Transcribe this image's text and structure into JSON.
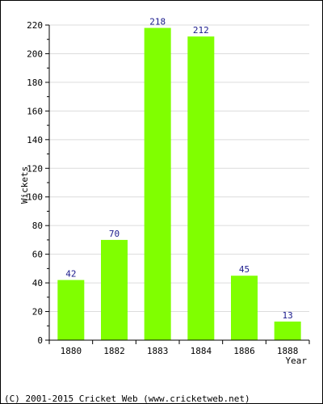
{
  "chart_data": {
    "type": "bar",
    "categories": [
      "1880",
      "1882",
      "1883",
      "1884",
      "1886",
      "1888"
    ],
    "values": [
      42,
      70,
      218,
      212,
      45,
      13
    ],
    "xlabel": "Year",
    "ylabel": "Wickets",
    "ylim": [
      0,
      220
    ],
    "yticks": [
      0,
      20,
      40,
      60,
      80,
      100,
      120,
      140,
      160,
      180,
      200,
      220
    ],
    "grid": true,
    "bar_color": "#80ff00"
  },
  "footer": {
    "copyright": "(C) 2001-2015 Cricket Web (www.cricketweb.net)"
  }
}
